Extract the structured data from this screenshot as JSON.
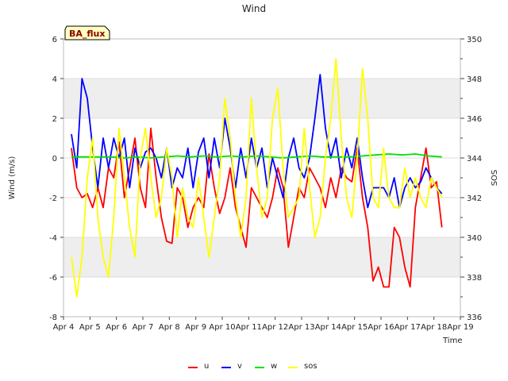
{
  "chart_data": {
    "type": "line",
    "title": "Wind",
    "site_label": "BA_flux",
    "xlabel": "Time",
    "ylabel": "Wind (m/s)",
    "y2label": "SOS",
    "xlim": [
      4,
      19
    ],
    "ylim": [
      -8,
      6
    ],
    "y2lim": [
      336,
      350
    ],
    "x_ticks": [
      4,
      5,
      6,
      7,
      8,
      9,
      10,
      11,
      12,
      13,
      14,
      15,
      16,
      17,
      18,
      19
    ],
    "x_tick_labels": [
      "Apr 4",
      "Apr 5",
      "Apr 6",
      "Apr 7",
      "Apr 8",
      "Apr 9",
      "Apr 10",
      "Apr 11",
      "Apr 12",
      "Apr 13",
      "Apr 14",
      "Apr 15",
      "Apr 16",
      "Apr 17",
      "Apr 18",
      "Apr 19"
    ],
    "y_ticks": [
      -8,
      -6,
      -4,
      -2,
      0,
      2,
      4,
      6
    ],
    "y2_ticks": [
      336,
      338,
      340,
      342,
      344,
      346,
      348,
      350
    ],
    "bands": [
      [
        -6,
        -4
      ],
      [
        2,
        4
      ]
    ],
    "series": [
      {
        "name": "u",
        "color": "#ff0000",
        "axis": "left",
        "x": [
          4.3,
          4.5,
          4.7,
          4.9,
          5.1,
          5.3,
          5.5,
          5.7,
          5.9,
          6.1,
          6.3,
          6.5,
          6.7,
          6.9,
          7.1,
          7.3,
          7.5,
          7.7,
          7.9,
          8.1,
          8.3,
          8.5,
          8.7,
          8.9,
          9.1,
          9.3,
          9.5,
          9.7,
          9.9,
          10.1,
          10.3,
          10.5,
          10.7,
          10.9,
          11.1,
          11.3,
          11.5,
          11.7,
          11.9,
          12.1,
          12.3,
          12.5,
          12.7,
          12.9,
          13.1,
          13.3,
          13.5,
          13.7,
          13.9,
          14.1,
          14.3,
          14.5,
          14.7,
          14.9,
          15.1,
          15.3,
          15.5,
          15.7,
          15.9,
          16.1,
          16.3,
          16.5,
          16.7,
          16.9,
          17.1,
          17.3,
          17.5,
          17.7,
          17.9,
          18.1,
          18.3
        ],
        "values": [
          0.5,
          -1.5,
          -2.0,
          -1.8,
          -2.5,
          -1.5,
          -2.5,
          -0.5,
          -1.0,
          0.8,
          -2.0,
          -0.5,
          1.0,
          -1.5,
          -2.5,
          1.5,
          -1.0,
          -3.0,
          -4.2,
          -4.3,
          -1.5,
          -2.0,
          -3.5,
          -2.5,
          -2.0,
          -2.5,
          0.2,
          -1.5,
          -2.8,
          -2.0,
          -0.5,
          -2.5,
          -3.5,
          -4.5,
          -1.5,
          -2.0,
          -2.5,
          -3.0,
          -2.0,
          -0.5,
          -1.5,
          -4.5,
          -3.0,
          -1.5,
          -2.0,
          -0.5,
          -1.0,
          -1.5,
          -2.5,
          -1.0,
          -2.0,
          -0.5,
          -1.0,
          -1.2,
          0.5,
          -2.0,
          -3.5,
          -6.2,
          -5.5,
          -6.5,
          -6.5,
          -3.5,
          -4.0,
          -5.5,
          -6.5,
          -2.5,
          -1.0,
          0.5,
          -1.5,
          -1.2,
          -3.5
        ]
      },
      {
        "name": "v",
        "color": "#0000ff",
        "axis": "left",
        "x": [
          4.3,
          4.5,
          4.7,
          4.9,
          5.1,
          5.3,
          5.5,
          5.7,
          5.9,
          6.1,
          6.3,
          6.5,
          6.7,
          6.9,
          7.1,
          7.3,
          7.5,
          7.7,
          7.9,
          8.1,
          8.3,
          8.5,
          8.7,
          8.9,
          9.1,
          9.3,
          9.5,
          9.7,
          9.9,
          10.1,
          10.3,
          10.5,
          10.7,
          10.9,
          11.1,
          11.3,
          11.5,
          11.7,
          11.9,
          12.1,
          12.3,
          12.5,
          12.7,
          12.9,
          13.1,
          13.3,
          13.5,
          13.7,
          13.9,
          14.1,
          14.3,
          14.5,
          14.7,
          14.9,
          15.1,
          15.3,
          15.5,
          15.7,
          15.9,
          16.1,
          16.3,
          16.5,
          16.7,
          16.9,
          17.1,
          17.3,
          17.5,
          17.7,
          17.9,
          18.1,
          18.3
        ],
        "values": [
          1.2,
          -0.5,
          4.0,
          3.0,
          0.5,
          -1.5,
          1.0,
          -0.5,
          1.0,
          0.0,
          1.0,
          -1.5,
          0.5,
          -0.5,
          0.3,
          0.5,
          0.0,
          -1.0,
          0.5,
          -1.5,
          -0.5,
          -1.0,
          0.5,
          -1.5,
          0.3,
          1.0,
          -1.0,
          1.0,
          -0.5,
          2.0,
          0.5,
          -1.5,
          0.5,
          -1.0,
          1.0,
          -0.5,
          0.5,
          -1.5,
          0.0,
          -1.0,
          -2.0,
          0.0,
          1.0,
          -0.5,
          -1.0,
          0.0,
          2.0,
          4.2,
          1.5,
          0.0,
          1.0,
          -1.0,
          0.5,
          -0.5,
          1.0,
          -1.0,
          -2.5,
          -1.5,
          -1.5,
          -1.5,
          -2.0,
          -1.0,
          -2.5,
          -1.5,
          -1.0,
          -1.5,
          -1.2,
          -0.5,
          -1.0,
          -1.5,
          -1.8
        ]
      },
      {
        "name": "w",
        "color": "#00e000",
        "axis": "left",
        "x": [
          4.3,
          4.8,
          5.3,
          5.8,
          6.3,
          6.8,
          7.3,
          7.8,
          8.3,
          8.8,
          9.3,
          9.8,
          10.3,
          10.8,
          11.3,
          11.8,
          12.3,
          12.8,
          13.3,
          13.8,
          14.3,
          14.8,
          15.3,
          15.8,
          16.3,
          16.8,
          17.3,
          17.8,
          18.3
        ],
        "values": [
          0.05,
          0.05,
          0.05,
          0.05,
          0.0,
          0.05,
          0.0,
          0.05,
          0.1,
          0.05,
          0.1,
          0.05,
          0.1,
          0.05,
          0.1,
          0.05,
          0.0,
          0.05,
          0.1,
          0.05,
          0.05,
          0.05,
          0.1,
          0.15,
          0.2,
          0.15,
          0.2,
          0.1,
          0.05
        ]
      },
      {
        "name": "sos",
        "color": "#ffff00",
        "axis": "right",
        "x": [
          4.3,
          4.5,
          4.7,
          4.9,
          5.1,
          5.3,
          5.5,
          5.7,
          5.9,
          6.1,
          6.3,
          6.5,
          6.7,
          6.9,
          7.1,
          7.3,
          7.5,
          7.7,
          7.9,
          8.1,
          8.3,
          8.5,
          8.7,
          8.9,
          9.1,
          9.3,
          9.5,
          9.7,
          9.9,
          10.1,
          10.3,
          10.5,
          10.7,
          10.9,
          11.1,
          11.3,
          11.5,
          11.7,
          11.9,
          12.1,
          12.3,
          12.5,
          12.7,
          12.9,
          13.1,
          13.3,
          13.5,
          13.7,
          13.9,
          14.1,
          14.3,
          14.5,
          14.7,
          14.9,
          15.1,
          15.3,
          15.5,
          15.7,
          15.9,
          16.1,
          16.3,
          16.5,
          16.7,
          16.9,
          17.1,
          17.3,
          17.5,
          17.7,
          17.9,
          18.1,
          18.3
        ],
        "values": [
          339.0,
          337.0,
          339.0,
          343.0,
          345.0,
          341.0,
          339.0,
          338.0,
          341.0,
          345.5,
          343.0,
          340.5,
          339.0,
          344.0,
          345.5,
          343.0,
          341.0,
          342.0,
          344.5,
          343.0,
          340.0,
          342.5,
          341.0,
          340.5,
          343.0,
          341.0,
          339.0,
          341.0,
          343.0,
          347.0,
          345.0,
          342.0,
          340.0,
          342.0,
          347.0,
          343.5,
          341.0,
          342.0,
          346.0,
          347.5,
          343.5,
          341.0,
          341.5,
          342.0,
          345.5,
          342.5,
          340.0,
          341.0,
          344.0,
          346.0,
          349.0,
          345.0,
          342.0,
          341.0,
          344.0,
          348.5,
          346.0,
          342.0,
          341.5,
          344.5,
          342.0,
          341.5,
          341.5,
          343.5,
          342.0,
          343.0,
          342.0,
          341.5,
          343.0,
          342.5,
          342.0
        ]
      }
    ]
  }
}
